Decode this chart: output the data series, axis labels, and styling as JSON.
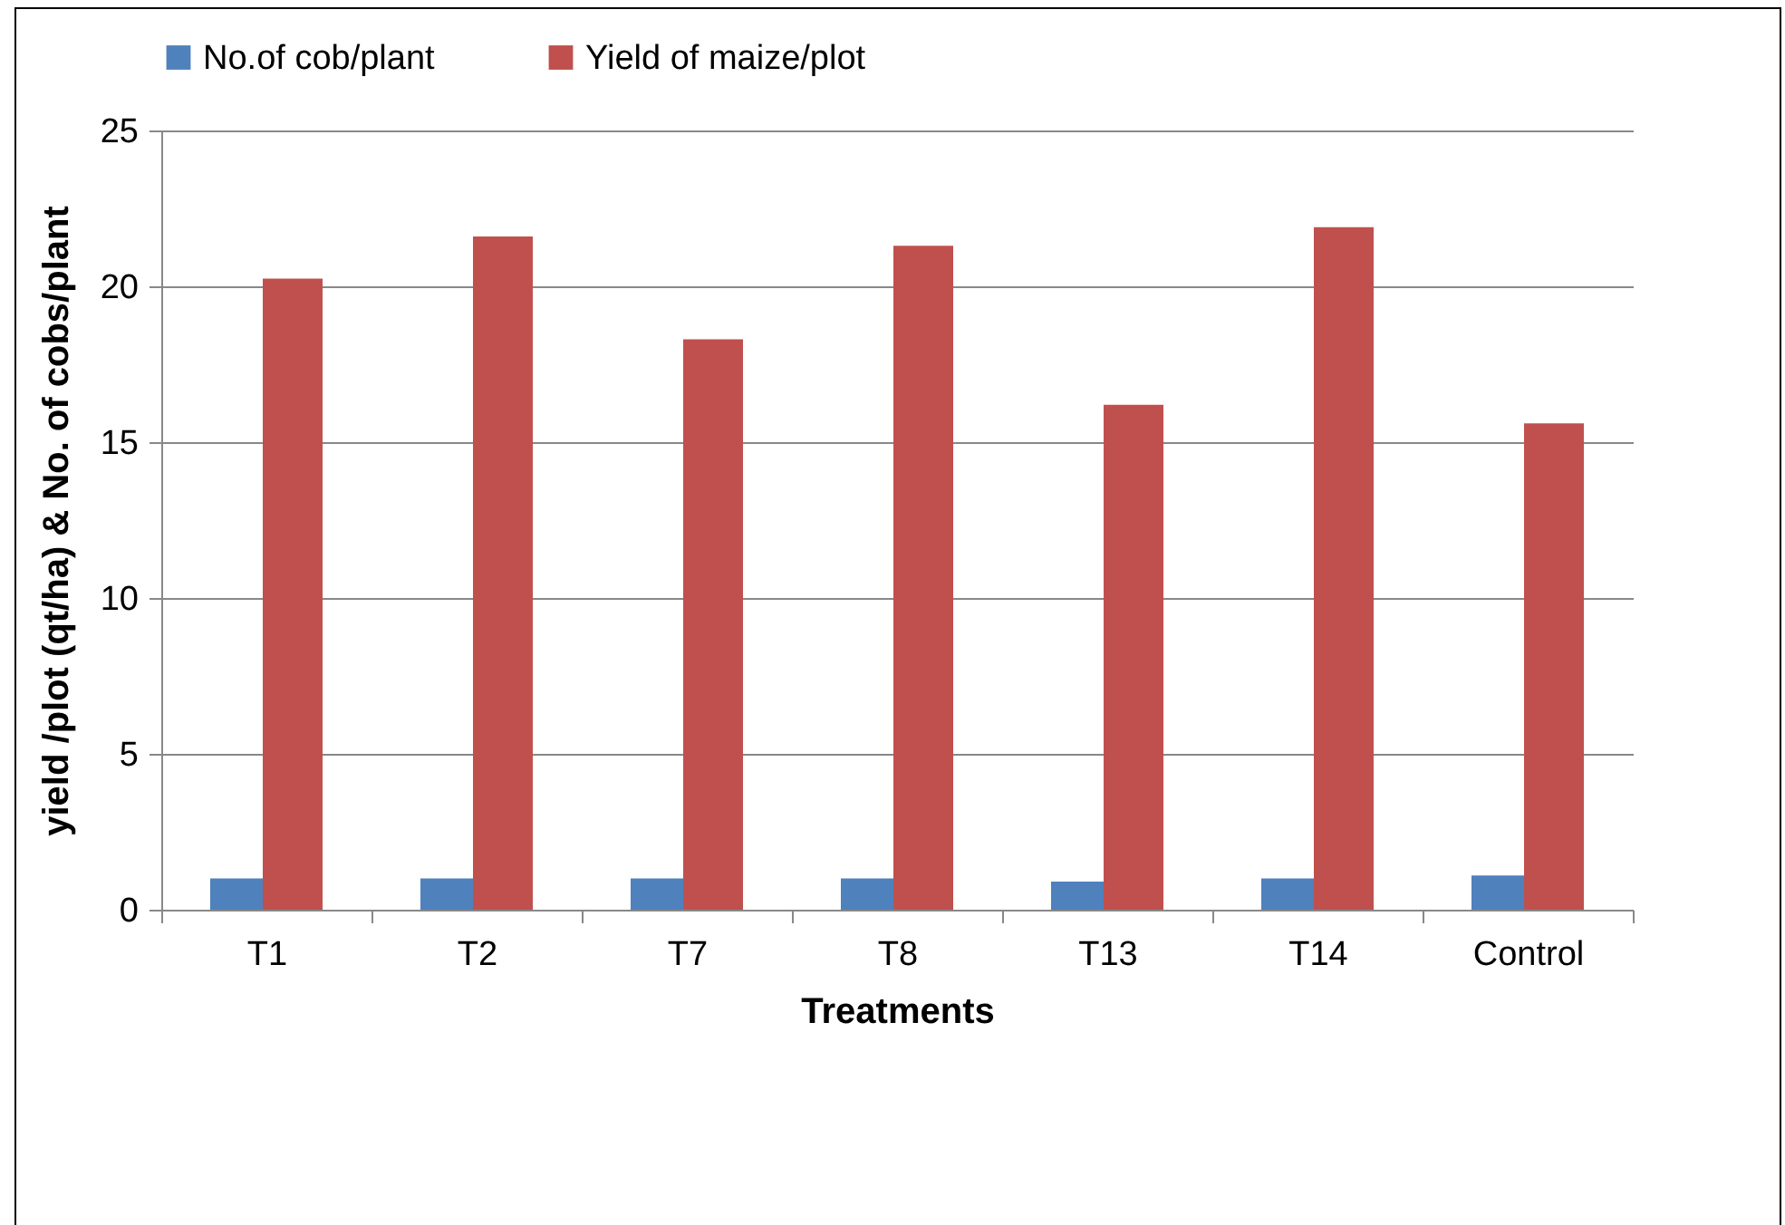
{
  "chart_data": {
    "type": "bar",
    "xlabel": "Treatments",
    "ylabel": "yield /plot (qt/ha) & No. of cobs/plant",
    "categories": [
      "T1",
      "T2",
      "T7",
      "T8",
      "T13",
      "T14",
      "Control"
    ],
    "series": [
      {
        "name": "No.of cob/plant",
        "color": "#4f81bd",
        "values": [
          1.0,
          1.0,
          1.0,
          1.0,
          0.9,
          1.0,
          1.1
        ]
      },
      {
        "name": "Yield of maize/plot",
        "color": "#c0504d",
        "values": [
          20.25,
          21.6,
          18.3,
          21.3,
          16.2,
          21.9,
          15.6
        ]
      }
    ],
    "ylim": [
      0,
      25
    ],
    "yticks": [
      0,
      5,
      10,
      15,
      20,
      25
    ],
    "grid": "y",
    "legend": "top"
  }
}
